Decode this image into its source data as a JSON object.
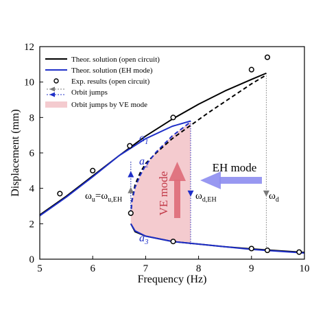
{
  "chart_data": {
    "type": "line",
    "xlabel": "Frequency (Hz)",
    "ylabel": "Displacement (mm)",
    "xlim": [
      5,
      10
    ],
    "ylim": [
      0,
      12
    ],
    "xticks": [
      5,
      6,
      7,
      8,
      9,
      10
    ],
    "yticks": [
      0,
      2,
      4,
      6,
      8,
      10,
      12
    ],
    "grid": false,
    "legend_position": "top-left",
    "legend": [
      "Theor. solution (open circuit)",
      "Theor. solution (EH mode)",
      "Exp. results (open circuit)",
      "Orbit jumps",
      "Orbit jumps by VE mode"
    ],
    "colors": {
      "open_circuit": "#000000",
      "eh_mode": "#1f2fc8",
      "ve_region": "#f3c9cd",
      "ve_arrow": "#d9626e",
      "eh_arrow": "#8c8cef",
      "jump_gray": "#7a7a7a"
    },
    "series": [
      {
        "name": "Theor. solution (open circuit)",
        "branch": "upper-stable",
        "style": "solid",
        "x": [
          5.0,
          5.5,
          6.0,
          6.5,
          7.0,
          7.5,
          8.0,
          8.5,
          9.0,
          9.28
        ],
        "y": [
          2.5,
          3.55,
          4.7,
          5.85,
          6.95,
          7.9,
          8.75,
          9.5,
          10.15,
          10.5
        ]
      },
      {
        "name": "Theor. solution (open circuit)",
        "branch": "unstable",
        "style": "dashed",
        "x": [
          6.72,
          6.74,
          6.8,
          6.9,
          7.0,
          7.2,
          7.5,
          7.8,
          8.2,
          8.6,
          9.0,
          9.28
        ],
        "y": [
          2.45,
          3.3,
          4.2,
          4.9,
          5.4,
          6.0,
          6.8,
          7.45,
          8.3,
          9.1,
          9.9,
          10.4
        ]
      },
      {
        "name": "Theor. solution (open circuit)",
        "branch": "lower-stable",
        "style": "solid",
        "x": [
          6.72,
          6.8,
          7.0,
          7.5,
          8.0,
          8.5,
          9.0,
          9.5,
          10.0
        ],
        "y": [
          2.0,
          1.55,
          1.3,
          1.0,
          0.85,
          0.7,
          0.58,
          0.48,
          0.38
        ]
      },
      {
        "name": "Theor. solution (EH mode)",
        "branch": "upper-stable",
        "style": "solid",
        "x": [
          5.0,
          5.5,
          6.0,
          6.5,
          7.0,
          7.5,
          7.85
        ],
        "y": [
          2.45,
          3.5,
          4.65,
          5.85,
          6.8,
          7.5,
          7.8
        ]
      },
      {
        "name": "Theor. solution (EH mode)",
        "branch": "unstable",
        "style": "dashed",
        "x": [
          6.72,
          6.74,
          6.8,
          6.9,
          7.0,
          7.2,
          7.5,
          7.85
        ],
        "y": [
          2.45,
          3.25,
          4.05,
          4.75,
          5.3,
          6.05,
          6.95,
          7.75
        ]
      },
      {
        "name": "Theor. solution (EH mode)",
        "branch": "lower-stable",
        "style": "solid",
        "x": [
          6.72,
          6.8,
          7.0,
          7.5,
          8.0,
          8.5,
          9.0,
          9.5,
          10.0
        ],
        "y": [
          2.0,
          1.6,
          1.3,
          1.0,
          0.85,
          0.7,
          0.55,
          0.45,
          0.35
        ]
      }
    ],
    "experimental": {
      "name": "Exp. results (open circuit)",
      "x": [
        5.38,
        6.0,
        6.7,
        7.52,
        9.0,
        9.3,
        6.72,
        7.52,
        9.0,
        9.3,
        9.9
      ],
      "y": [
        3.7,
        5.0,
        6.4,
        8.0,
        10.7,
        11.4,
        2.6,
        1.0,
        0.6,
        0.5,
        0.4
      ]
    },
    "orbit_jumps": [
      {
        "x": 6.72,
        "y_from": 2.6,
        "y_to": 5.5,
        "color": "gray",
        "direction": "up"
      },
      {
        "x": 6.72,
        "y_from": 2.6,
        "y_to": 5.5,
        "color": "blue",
        "direction": "up"
      },
      {
        "x": 7.85,
        "y_from": 7.8,
        "y_to": 0.8,
        "color": "blue",
        "direction": "down"
      },
      {
        "x": 9.28,
        "y_from": 10.5,
        "y_to": 0.5,
        "color": "gray",
        "direction": "down"
      }
    ],
    "annotations": {
      "a1": "a",
      "a1_sub": "1",
      "a2": "a",
      "a2_sub": "2",
      "a3": "a",
      "a3_sub": "3",
      "omega_u": "ω",
      "omega_u_sub": "u",
      "equals": "=",
      "omega_ueh": "ω",
      "omega_ueh_sub": "u,EH",
      "omega_deh": "ω",
      "omega_deh_sub": "d,EH",
      "omega_d": "ω",
      "omega_d_sub": "d",
      "ve_mode": "VE mode",
      "eh_mode": "EH mode"
    }
  }
}
